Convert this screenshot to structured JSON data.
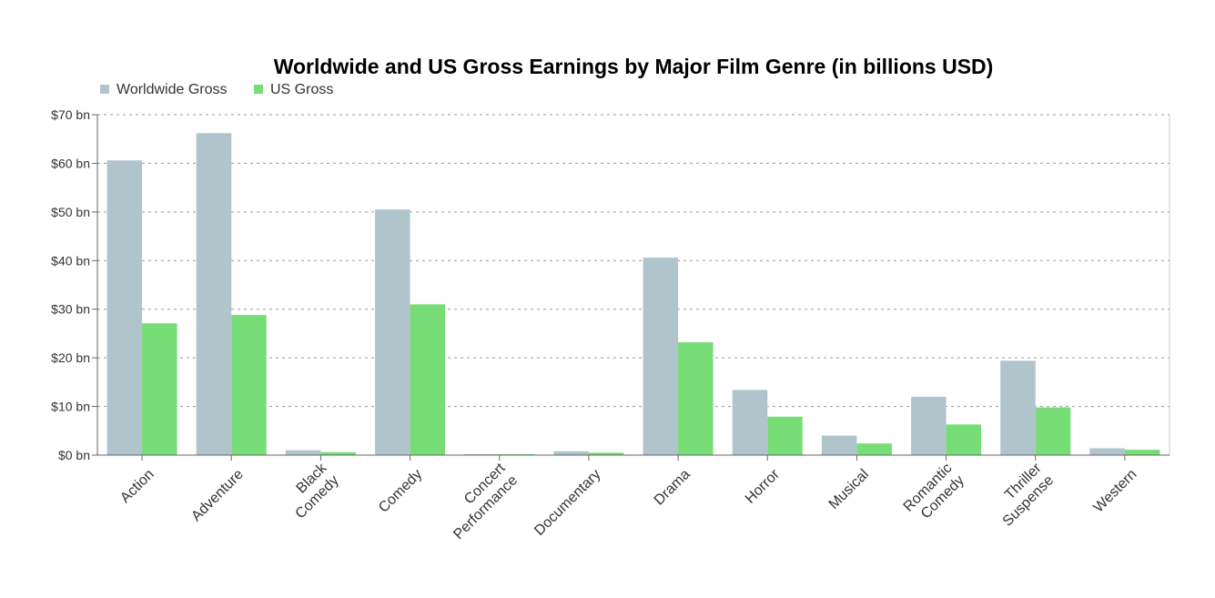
{
  "chart_data": {
    "type": "bar",
    "title": "Worldwide and US Gross Earnings by Major Film Genre (in billions USD)",
    "xlabel": "",
    "ylabel": "",
    "ylim": [
      0,
      70
    ],
    "yticks": [
      0,
      10,
      20,
      30,
      40,
      50,
      60,
      70
    ],
    "ytick_labels": [
      "$0 bn",
      "$10 bn",
      "$20 bn",
      "$30 bn",
      "$40 bn",
      "$50 bn",
      "$60 bn",
      "$70 bn"
    ],
    "grid": true,
    "legend_position": "top-left",
    "categories": [
      [
        "Action"
      ],
      [
        "Adventure"
      ],
      [
        "Black",
        "Comedy"
      ],
      [
        "Comedy"
      ],
      [
        "Concert",
        "Performance"
      ],
      [
        "Documentary"
      ],
      [
        "Drama"
      ],
      [
        "Horror"
      ],
      [
        "Musical"
      ],
      [
        "Romantic",
        "Comedy"
      ],
      [
        "Thriller",
        "Suspense"
      ],
      [
        "Western"
      ]
    ],
    "series": [
      {
        "name": "Worldwide Gross",
        "color": "#b0c4cc",
        "values": [
          60.6,
          66.2,
          1.0,
          50.5,
          0.2,
          0.8,
          40.6,
          13.4,
          4.0,
          12.0,
          19.4,
          1.4
        ]
      },
      {
        "name": "US Gross",
        "color": "#77dd77",
        "values": [
          27.1,
          28.8,
          0.6,
          31.0,
          0.2,
          0.5,
          23.2,
          7.9,
          2.4,
          6.3,
          9.8,
          1.1
        ]
      }
    ]
  }
}
